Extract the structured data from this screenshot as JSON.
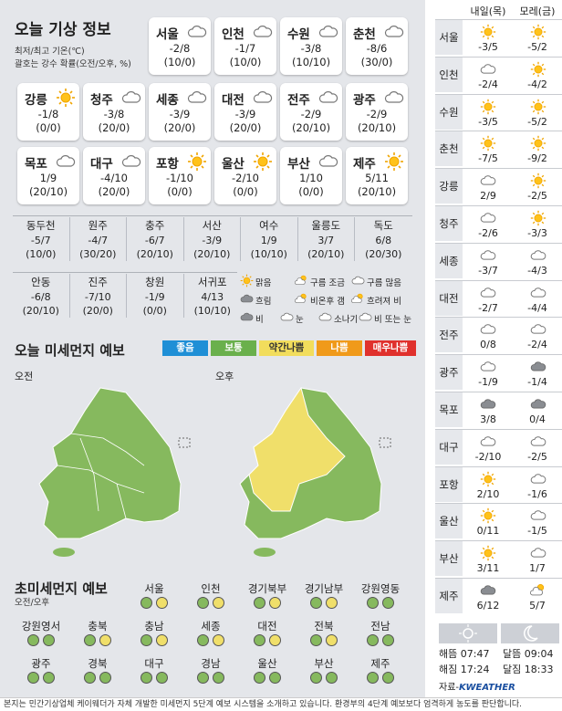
{
  "title": "오늘 기상 정보",
  "subtitle_line1": "최저/최고 기온(℃)",
  "subtitle_line2": "괄호는 강수 확률(오전/오후, %)",
  "cities": [
    {
      "name": "서울",
      "temp": "-2/8",
      "rain": "(10/0)",
      "icon": "cloud"
    },
    {
      "name": "인천",
      "temp": "-1/7",
      "rain": "(10/0)",
      "icon": "cloud"
    },
    {
      "name": "수원",
      "temp": "-3/8",
      "rain": "(10/10)",
      "icon": "cloud"
    },
    {
      "name": "춘천",
      "temp": "-8/6",
      "rain": "(30/0)",
      "icon": "cloud"
    },
    {
      "name": "강릉",
      "temp": "-1/8",
      "rain": "(0/0)",
      "icon": "sun"
    },
    {
      "name": "청주",
      "temp": "-3/8",
      "rain": "(20/0)",
      "icon": "cloud"
    },
    {
      "name": "세종",
      "temp": "-3/9",
      "rain": "(20/0)",
      "icon": "cloud"
    },
    {
      "name": "대전",
      "temp": "-3/9",
      "rain": "(20/0)",
      "icon": "cloud"
    },
    {
      "name": "전주",
      "temp": "-2/9",
      "rain": "(20/10)",
      "icon": "cloud"
    },
    {
      "name": "광주",
      "temp": "-2/9",
      "rain": "(20/10)",
      "icon": "cloud"
    },
    {
      "name": "목포",
      "temp": "1/9",
      "rain": "(20/10)",
      "icon": "cloud"
    },
    {
      "name": "대구",
      "temp": "-4/10",
      "rain": "(20/0)",
      "icon": "cloud"
    },
    {
      "name": "포항",
      "temp": "-1/10",
      "rain": "(0/0)",
      "icon": "sun"
    },
    {
      "name": "울산",
      "temp": "-2/10",
      "rain": "(0/0)",
      "icon": "sun"
    },
    {
      "name": "부산",
      "temp": "1/10",
      "rain": "(0/0)",
      "icon": "cloud"
    },
    {
      "name": "제주",
      "temp": "5/11",
      "rain": "(20/10)",
      "icon": "sun"
    }
  ],
  "small_row1": [
    {
      "name": "동두천",
      "temp": "-5/7",
      "rain": "(10/0)"
    },
    {
      "name": "원주",
      "temp": "-4/7",
      "rain": "(30/20)"
    },
    {
      "name": "충주",
      "temp": "-6/7",
      "rain": "(20/10)"
    },
    {
      "name": "서산",
      "temp": "-3/9",
      "rain": "(20/10)"
    },
    {
      "name": "여수",
      "temp": "1/9",
      "rain": "(10/10)"
    },
    {
      "name": "울릉도",
      "temp": "3/7",
      "rain": "(20/10)"
    },
    {
      "name": "독도",
      "temp": "6/8",
      "rain": "(20/30)"
    }
  ],
  "small_row2": [
    {
      "name": "안동",
      "temp": "-6/8",
      "rain": "(20/10)"
    },
    {
      "name": "진주",
      "temp": "-7/10",
      "rain": "(20/0)"
    },
    {
      "name": "창원",
      "temp": "-1/9",
      "rain": "(0/0)"
    },
    {
      "name": "서귀포",
      "temp": "4/13",
      "rain": "(10/10)"
    }
  ],
  "legend": [
    "맑음",
    "구름 조금",
    "구름 많음",
    "흐림",
    "비온후 갬",
    "흐려져 비",
    "비",
    "눈",
    "소나기",
    "비 또는 눈"
  ],
  "pm_title": "오늘 미세먼지 예보",
  "pm_levels": [
    {
      "label": "좋음",
      "color": "#1f8fd6"
    },
    {
      "label": "보통",
      "color": "#6ab04c"
    },
    {
      "label": "약간나쁨",
      "color": "#f2dd5c"
    },
    {
      "label": "나쁨",
      "color": "#f09a1a"
    },
    {
      "label": "매우나쁨",
      "color": "#e0312d"
    }
  ],
  "map_am": "오전",
  "map_pm": "오후",
  "ultra_title": "초미세먼지 예보",
  "ultra_sub": "오전/오후",
  "ultra_row1": [
    {
      "name": "서울",
      "am": "green",
      "pm": "yellow"
    },
    {
      "name": "인천",
      "am": "green",
      "pm": "yellow"
    },
    {
      "name": "경기북부",
      "am": "green",
      "pm": "yellow"
    },
    {
      "name": "경기남부",
      "am": "green",
      "pm": "yellow"
    },
    {
      "name": "강원영동",
      "am": "green",
      "pm": "green"
    }
  ],
  "ultra_row2": [
    {
      "name": "강원영서",
      "am": "green",
      "pm": "green"
    },
    {
      "name": "충북",
      "am": "green",
      "pm": "yellow"
    },
    {
      "name": "충남",
      "am": "green",
      "pm": "yellow"
    },
    {
      "name": "세종",
      "am": "green",
      "pm": "yellow"
    },
    {
      "name": "대전",
      "am": "green",
      "pm": "yellow"
    },
    {
      "name": "전북",
      "am": "green",
      "pm": "yellow"
    },
    {
      "name": "전남",
      "am": "green",
      "pm": "green"
    }
  ],
  "ultra_row3": [
    {
      "name": "광주",
      "am": "green",
      "pm": "green"
    },
    {
      "name": "경북",
      "am": "green",
      "pm": "green"
    },
    {
      "name": "대구",
      "am": "green",
      "pm": "green"
    },
    {
      "name": "경남",
      "am": "green",
      "pm": "green"
    },
    {
      "name": "울산",
      "am": "green",
      "pm": "green"
    },
    {
      "name": "부산",
      "am": "green",
      "pm": "green"
    },
    {
      "name": "제주",
      "am": "green",
      "pm": "green"
    }
  ],
  "forecast_header": {
    "day1": "내일(목)",
    "day2": "모레(금)"
  },
  "forecast": [
    {
      "city": "서울",
      "i1": "sun",
      "v1": "-3/5",
      "i2": "sun",
      "v2": "-5/2"
    },
    {
      "city": "인천",
      "i1": "cloud",
      "v1": "-2/4",
      "i2": "sun",
      "v2": "-4/2"
    },
    {
      "city": "수원",
      "i1": "sun",
      "v1": "-3/5",
      "i2": "sun",
      "v2": "-5/2"
    },
    {
      "city": "춘천",
      "i1": "sun",
      "v1": "-7/5",
      "i2": "sun",
      "v2": "-9/2"
    },
    {
      "city": "강릉",
      "i1": "cloud",
      "v1": "2/9",
      "i2": "sun",
      "v2": "-2/5"
    },
    {
      "city": "청주",
      "i1": "cloud",
      "v1": "-2/6",
      "i2": "sun",
      "v2": "-3/3"
    },
    {
      "city": "세종",
      "i1": "cloud",
      "v1": "-3/7",
      "i2": "cloud",
      "v2": "-4/3"
    },
    {
      "city": "대전",
      "i1": "cloud",
      "v1": "-2/7",
      "i2": "cloud",
      "v2": "-4/4"
    },
    {
      "city": "전주",
      "i1": "cloud",
      "v1": "0/8",
      "i2": "cloud",
      "v2": "-2/4"
    },
    {
      "city": "광주",
      "i1": "cloud",
      "v1": "-1/9",
      "i2": "darkcloud",
      "v2": "-1/4"
    },
    {
      "city": "목포",
      "i1": "darkcloud",
      "v1": "3/8",
      "i2": "darkcloud",
      "v2": "0/4"
    },
    {
      "city": "대구",
      "i1": "cloud",
      "v1": "-2/10",
      "i2": "cloud",
      "v2": "-2/5"
    },
    {
      "city": "포항",
      "i1": "sun",
      "v1": "2/10",
      "i2": "cloud",
      "v2": "-1/6"
    },
    {
      "city": "울산",
      "i1": "sun",
      "v1": "0/11",
      "i2": "cloud",
      "v2": "-1/5"
    },
    {
      "city": "부산",
      "i1": "sun",
      "v1": "3/11",
      "i2": "cloud",
      "v2": "1/7"
    },
    {
      "city": "제주",
      "i1": "darkcloud",
      "v1": "6/12",
      "i2": "suncloud",
      "v2": "5/7"
    }
  ],
  "sun": {
    "rise_label": "해뜸",
    "rise": "07:47",
    "set_label": "해짐",
    "set": "17:24"
  },
  "moon": {
    "rise_label": "달뜸",
    "rise": "09:04",
    "set_label": "달짐",
    "set": "18:33"
  },
  "source_label": "자료-",
  "brand": "KWEATHER",
  "footer": "본지는 민간기상업체 케이웨더가 자체 개발한 미세먼지 5단계 예보 시스템을 소개하고 있습니다. 환경부의 4단계 예보보다 엄격하게 농도를 판단합니다."
}
